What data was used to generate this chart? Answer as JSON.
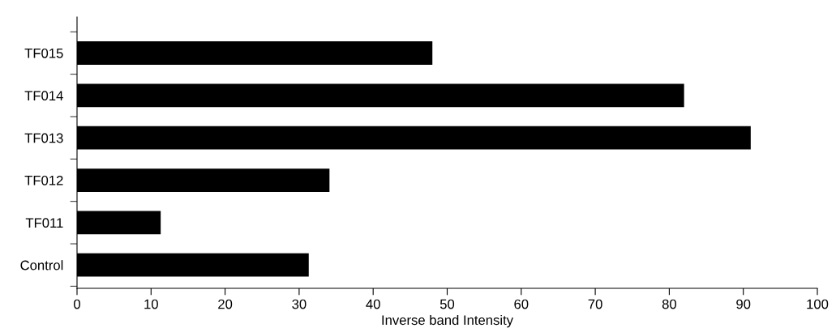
{
  "chart_data": {
    "type": "bar",
    "orientation": "horizontal",
    "xlabel": "Inverse band Intensity",
    "categories": [
      "TF015",
      "TF014",
      "TF013",
      "TF012",
      "TF011",
      "Control"
    ],
    "values": [
      48,
      82,
      91,
      34.1,
      11.3,
      31.3
    ],
    "color": "#000000",
    "xlim": [
      0,
      100
    ],
    "xticks": [
      0,
      10,
      20,
      30,
      40,
      50,
      60,
      70,
      80,
      90,
      100
    ],
    "grid": false
  }
}
